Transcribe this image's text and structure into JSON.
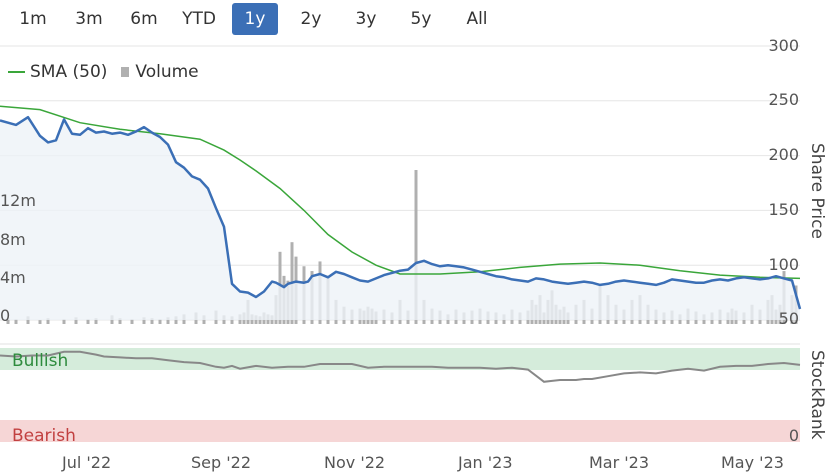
{
  "range_buttons": [
    {
      "label": "1m",
      "active": false
    },
    {
      "label": "3m",
      "active": false
    },
    {
      "label": "6m",
      "active": false
    },
    {
      "label": "YTD",
      "active": false
    },
    {
      "label": "1y",
      "active": true
    },
    {
      "label": "2y",
      "active": false
    },
    {
      "label": "3y",
      "active": false
    },
    {
      "label": "5y",
      "active": false
    },
    {
      "label": "All",
      "active": false
    }
  ],
  "legend": {
    "sma_label": "SMA (50)",
    "volume_label": "Volume"
  },
  "colors": {
    "price": "#3b6fb6",
    "sma": "#3aa63a",
    "volume": "#b0b0b0",
    "rank": "#888888",
    "active_button": "#3b6fb6",
    "bullish_bg": "#d5ecdb",
    "bearish_bg": "#f6d6d6",
    "bullish_text": "#2e8b3d",
    "bearish_text": "#c24040",
    "area_fill": "#eef2f8"
  },
  "chart_data": [
    {
      "type": "line",
      "yaxis_title": "Share Price",
      "y_ticks": [
        "300",
        "250",
        "200",
        "150",
        "100",
        "50"
      ],
      "ylim": [
        50,
        300
      ],
      "volume_ticks": [
        "12m",
        "8m",
        "4m",
        "0"
      ],
      "volume_ylim": [
        0,
        16
      ],
      "x_ticks": [
        "Jul '22",
        "Sep '22",
        "Nov '22",
        "Jan '23",
        "Mar '23",
        "May '23"
      ],
      "x_tick_pos": [
        0.1,
        0.27,
        0.435,
        0.6,
        0.765,
        0.93
      ],
      "series": [
        {
          "name": "",
          "role": "price",
          "x": [
            0,
            0.02,
            0.035,
            0.05,
            0.06,
            0.07,
            0.08,
            0.09,
            0.1,
            0.11,
            0.12,
            0.13,
            0.14,
            0.15,
            0.16,
            0.17,
            0.18,
            0.19,
            0.2,
            0.21,
            0.22,
            0.23,
            0.24,
            0.25,
            0.26,
            0.27,
            0.28,
            0.29,
            0.3,
            0.31,
            0.32,
            0.33,
            0.34,
            0.345,
            0.35,
            0.355,
            0.36,
            0.37,
            0.38,
            0.385,
            0.39,
            0.4,
            0.41,
            0.42,
            0.43,
            0.44,
            0.45,
            0.46,
            0.47,
            0.48,
            0.49,
            0.5,
            0.51,
            0.52,
            0.53,
            0.54,
            0.55,
            0.56,
            0.57,
            0.58,
            0.59,
            0.6,
            0.61,
            0.62,
            0.63,
            0.64,
            0.65,
            0.66,
            0.67,
            0.68,
            0.69,
            0.7,
            0.71,
            0.72,
            0.73,
            0.74,
            0.75,
            0.76,
            0.77,
            0.78,
            0.79,
            0.8,
            0.81,
            0.82,
            0.83,
            0.84,
            0.85,
            0.86,
            0.87,
            0.88,
            0.89,
            0.9,
            0.91,
            0.92,
            0.93,
            0.94,
            0.95,
            0.96,
            0.97,
            0.98,
            0.99,
            1.0
          ],
          "values": [
            232,
            228,
            235,
            218,
            212,
            214,
            233,
            220,
            219,
            225,
            221,
            222,
            220,
            221,
            219,
            222,
            226,
            221,
            217,
            210,
            194,
            189,
            181,
            178,
            170,
            152,
            135,
            83,
            76,
            75,
            71,
            76,
            85,
            84,
            82,
            80,
            83,
            85,
            84,
            85,
            90,
            92,
            89,
            94,
            92,
            89,
            86,
            85,
            88,
            91,
            93,
            95,
            96,
            102,
            104,
            101,
            99,
            100,
            99,
            98,
            96,
            94,
            92,
            90,
            89,
            87,
            86,
            85,
            88,
            87,
            85,
            84,
            83,
            84,
            85,
            84,
            82,
            83,
            85,
            86,
            85,
            84,
            83,
            82,
            84,
            87,
            86,
            85,
            84,
            84,
            86,
            87,
            86,
            88,
            89,
            88,
            87,
            88,
            90,
            88,
            86,
            60
          ]
        },
        {
          "name": "SMA (50)",
          "role": "sma",
          "x": [
            0,
            0.05,
            0.1,
            0.15,
            0.2,
            0.25,
            0.28,
            0.3,
            0.32,
            0.35,
            0.38,
            0.41,
            0.44,
            0.47,
            0.5,
            0.55,
            0.6,
            0.65,
            0.7,
            0.75,
            0.8,
            0.85,
            0.9,
            0.95,
            1.0
          ],
          "values": [
            245,
            242,
            230,
            224,
            220,
            215,
            205,
            196,
            186,
            170,
            150,
            128,
            112,
            100,
            92,
            92,
            94,
            98,
            101,
            102,
            100,
            95,
            91,
            89,
            88
          ]
        }
      ]
    },
    {
      "type": "bar",
      "series": [
        {
          "name": "Volume",
          "role": "volume",
          "x": [
            0.01,
            0.02,
            0.035,
            0.05,
            0.06,
            0.08,
            0.095,
            0.11,
            0.12,
            0.14,
            0.15,
            0.165,
            0.18,
            0.19,
            0.2,
            0.21,
            0.22,
            0.23,
            0.245,
            0.255,
            0.27,
            0.28,
            0.29,
            0.3,
            0.305,
            0.31,
            0.315,
            0.32,
            0.325,
            0.33,
            0.335,
            0.34,
            0.345,
            0.35,
            0.355,
            0.36,
            0.365,
            0.37,
            0.38,
            0.39,
            0.4,
            0.41,
            0.42,
            0.43,
            0.44,
            0.45,
            0.455,
            0.46,
            0.465,
            0.47,
            0.48,
            0.49,
            0.5,
            0.51,
            0.52,
            0.53,
            0.54,
            0.55,
            0.56,
            0.57,
            0.58,
            0.59,
            0.6,
            0.61,
            0.62,
            0.63,
            0.64,
            0.65,
            0.66,
            0.665,
            0.67,
            0.675,
            0.68,
            0.685,
            0.69,
            0.695,
            0.7,
            0.705,
            0.71,
            0.72,
            0.73,
            0.74,
            0.75,
            0.76,
            0.77,
            0.78,
            0.79,
            0.8,
            0.81,
            0.82,
            0.83,
            0.84,
            0.85,
            0.86,
            0.87,
            0.88,
            0.89,
            0.9,
            0.91,
            0.915,
            0.92,
            0.93,
            0.94,
            0.95,
            0.96,
            0.965,
            0.97,
            0.975,
            0.98,
            0.99,
            0.995
          ],
          "values": [
            0.6,
            0.5,
            0.8,
            0.4,
            0.6,
            0.5,
            0.7,
            0.5,
            0.6,
            0.9,
            0.6,
            0.5,
            0.7,
            0.6,
            0.5,
            0.7,
            0.8,
            1.0,
            1.2,
            0.9,
            1.4,
            0.9,
            0.8,
            1.0,
            1.2,
            2.5,
            1.0,
            0.9,
            0.8,
            1.2,
            1.0,
            0.9,
            3.0,
            7.5,
            5.0,
            4.5,
            8.5,
            7.0,
            6.0,
            5.5,
            6.5,
            5.0,
            2.5,
            1.8,
            1.5,
            1.6,
            1.4,
            1.8,
            1.6,
            1.3,
            1.5,
            1.2,
            2.5,
            1.4,
            16.0,
            2.5,
            1.6,
            1.4,
            1.0,
            1.5,
            1.2,
            1.4,
            1.6,
            1.3,
            1.2,
            1.0,
            1.5,
            1.2,
            1.4,
            2.5,
            2.0,
            3.0,
            1.2,
            2.5,
            3.5,
            2.0,
            1.5,
            1.8,
            1.2,
            2.0,
            2.5,
            1.6,
            4.0,
            3.0,
            2.0,
            1.5,
            2.5,
            3.0,
            2.0,
            1.5,
            1.2,
            1.4,
            1.0,
            1.6,
            1.3,
            1.0,
            1.2,
            1.5,
            1.2,
            1.6,
            1.4,
            1.2,
            2.0,
            1.5,
            2.5,
            3.0,
            1.5,
            2.0,
            5.5,
            3.0,
            4.0
          ]
        }
      ]
    },
    {
      "type": "line",
      "yaxis_title": "StockRank",
      "band_top_label": "Bullish",
      "band_bottom_label": "Bearish",
      "y_ticks": [
        "0"
      ],
      "ylim": [
        0,
        100
      ],
      "series": [
        {
          "name": "",
          "role": "rank",
          "x": [
            0,
            0.02,
            0.04,
            0.06,
            0.08,
            0.1,
            0.12,
            0.13,
            0.15,
            0.17,
            0.19,
            0.21,
            0.23,
            0.25,
            0.27,
            0.28,
            0.29,
            0.3,
            0.32,
            0.34,
            0.36,
            0.38,
            0.4,
            0.42,
            0.44,
            0.46,
            0.48,
            0.5,
            0.52,
            0.54,
            0.56,
            0.58,
            0.6,
            0.62,
            0.64,
            0.66,
            0.68,
            0.69,
            0.7,
            0.71,
            0.72,
            0.73,
            0.74,
            0.76,
            0.78,
            0.8,
            0.82,
            0.84,
            0.86,
            0.88,
            0.9,
            0.92,
            0.94,
            0.96,
            0.98,
            1.0
          ],
          "values": [
            92,
            91,
            92,
            92,
            96,
            96,
            93,
            91,
            90,
            89,
            89,
            87,
            85,
            84,
            80,
            79,
            81,
            78,
            81,
            79,
            80,
            80,
            83,
            83,
            83,
            79,
            80,
            80,
            80,
            80,
            79,
            79,
            79,
            78,
            79,
            77,
            64,
            65,
            66,
            66,
            66,
            67,
            67,
            70,
            73,
            74,
            73,
            76,
            78,
            76,
            80,
            81,
            81,
            83,
            84,
            82
          ]
        }
      ]
    }
  ]
}
